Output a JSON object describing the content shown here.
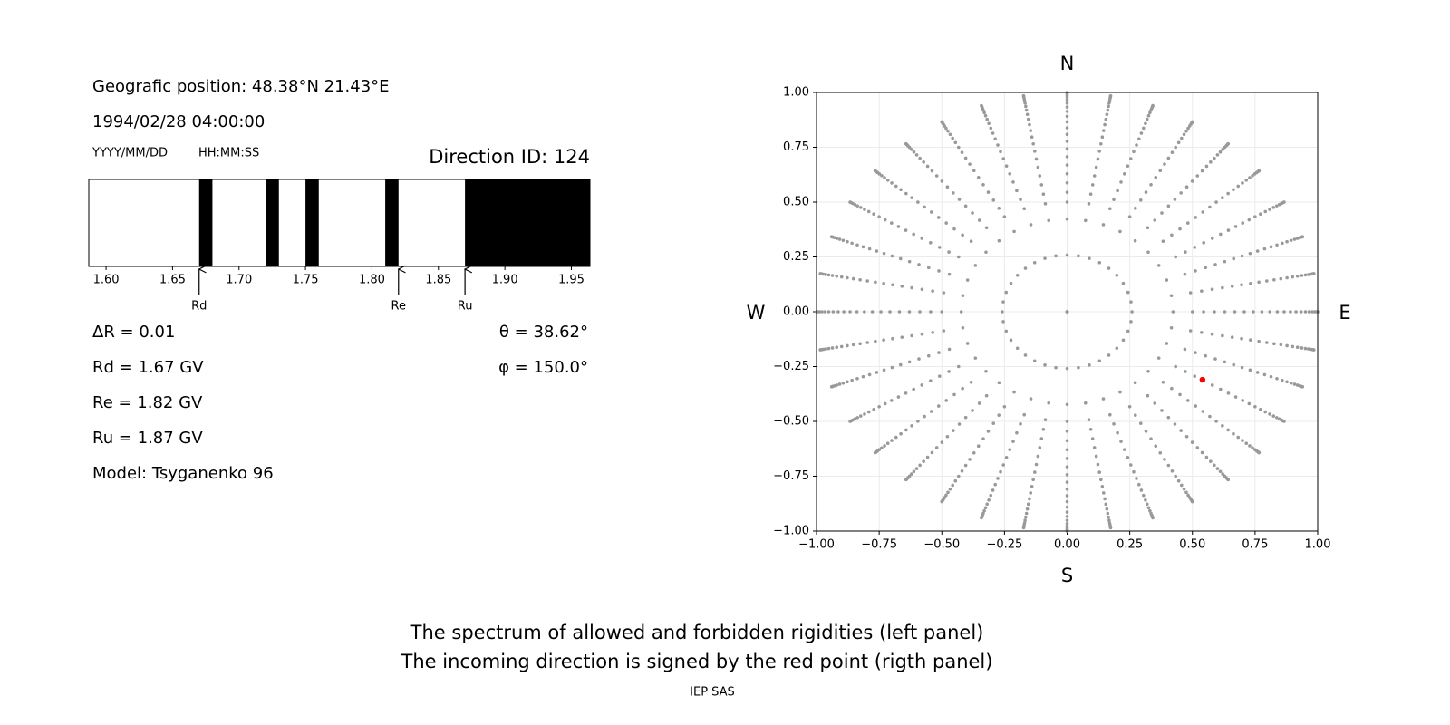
{
  "header": {
    "position": "Geografic position: 48.38°N 21.43°E",
    "datetime": "1994/02/28 04:00:00",
    "date_format": "YYYY/MM/DD",
    "time_format": "HH:MM:SS",
    "direction_id": "Direction ID: 124"
  },
  "info": {
    "left": [
      "ΔR = 0.01",
      "Rd = 1.67 GV",
      "Re = 1.82 GV",
      "Ru = 1.87 GV",
      "Model: Tsyganenko 96"
    ],
    "right": [
      "θ = 38.62°",
      "φ = 150.0°"
    ]
  },
  "chart_data": [
    {
      "type": "spectrum",
      "xlim": [
        1.587,
        1.964
      ],
      "xticks": [
        {
          "value": 1.6,
          "label": "1.60"
        },
        {
          "value": 1.65,
          "label": "1.65"
        },
        {
          "value": 1.7,
          "label": "1.70"
        },
        {
          "value": 1.75,
          "label": "1.75"
        },
        {
          "value": 1.8,
          "label": "1.80"
        },
        {
          "value": 1.85,
          "label": "1.85"
        },
        {
          "value": 1.9,
          "label": "1.90"
        },
        {
          "value": 1.95,
          "label": "1.95"
        }
      ],
      "bands": [
        [
          1.67,
          1.68
        ],
        [
          1.72,
          1.73
        ],
        [
          1.75,
          1.76
        ],
        [
          1.81,
          1.82
        ],
        [
          1.87,
          1.964
        ]
      ],
      "color": "#000000",
      "markers": [
        {
          "label": "Rd",
          "value": 1.67
        },
        {
          "label": "Re",
          "value": 1.82
        },
        {
          "label": "Ru",
          "value": 1.87
        }
      ]
    },
    {
      "type": "scatter",
      "xlim": [
        -1,
        1
      ],
      "ylim": [
        -1,
        1
      ],
      "grid": true,
      "xticks": [
        {
          "value": -1,
          "label": "−1.00"
        },
        {
          "value": -0.75,
          "label": "−0.75"
        },
        {
          "value": -0.5,
          "label": "−0.50"
        },
        {
          "value": -0.25,
          "label": "−0.25"
        },
        {
          "value": 0,
          "label": "0.00"
        },
        {
          "value": 0.25,
          "label": "0.25"
        },
        {
          "value": 0.5,
          "label": "0.50"
        },
        {
          "value": 0.75,
          "label": "0.75"
        },
        {
          "value": 1,
          "label": "1.00"
        }
      ],
      "yticks": [
        {
          "value": -1,
          "label": "−1.00"
        },
        {
          "value": -0.75,
          "label": "−0.75"
        },
        {
          "value": -0.5,
          "label": "−0.50"
        },
        {
          "value": -0.25,
          "label": "−0.25"
        },
        {
          "value": 0,
          "label": "0.00"
        },
        {
          "value": 0.25,
          "label": "0.25"
        },
        {
          "value": 0.5,
          "label": "0.50"
        },
        {
          "value": 0.75,
          "label": "0.75"
        },
        {
          "value": 1,
          "label": "1.00"
        }
      ],
      "grid_theta_deg": [
        0,
        15,
        25,
        30,
        33,
        36,
        39,
        42,
        45,
        48,
        51,
        54,
        57,
        60,
        63,
        66,
        69,
        72,
        75,
        78,
        81,
        84,
        87,
        90
      ],
      "grid_phi_deg": [
        0,
        10,
        20,
        30,
        40,
        50,
        60,
        70,
        80,
        90,
        100,
        110,
        120,
        130,
        140,
        150,
        160,
        170,
        180,
        190,
        200,
        210,
        220,
        230,
        240,
        250,
        260,
        270,
        280,
        290,
        300,
        310,
        320,
        330,
        340,
        350
      ],
      "grid_color": "#999999",
      "highlight": {
        "x": 0.54,
        "y": -0.31,
        "color": "#ff0000"
      },
      "directions": {
        "top": "N",
        "bottom": "S",
        "left": "W",
        "right": "E"
      }
    }
  ],
  "caption": [
    "The spectrum of allowed and forbidden rigidities (left panel)",
    "The incoming direction is signed by the red point (rigth panel)"
  ],
  "credit": "IEP SAS"
}
